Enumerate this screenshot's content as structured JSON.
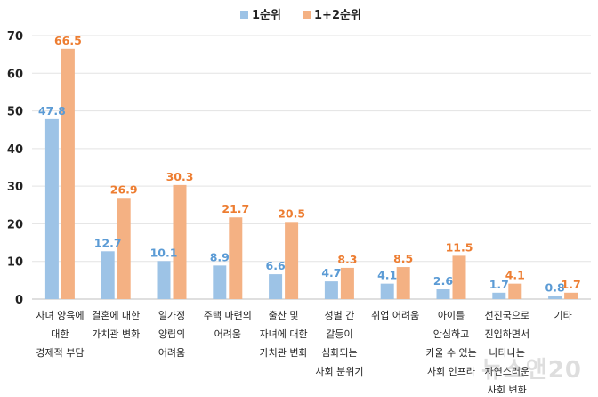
{
  "chart_data": {
    "type": "bar",
    "title": "",
    "xlabel": "",
    "ylabel": "",
    "ylim": [
      0,
      70
    ],
    "yticks": [
      0,
      10,
      20,
      30,
      40,
      50,
      60,
      70
    ],
    "grid": true,
    "legend_position": "top-center",
    "categories": [
      [
        "자녀 양육에",
        "대한",
        "경제적 부담"
      ],
      [
        "결혼에 대한",
        "가치관 변화"
      ],
      [
        "일가정",
        "양립의",
        "어려움"
      ],
      [
        "주택 마련의",
        "어려움"
      ],
      [
        "출산 및",
        "자녀에 대한",
        "가치관 변화"
      ],
      [
        "성별 간",
        "갈등이",
        "심화되는",
        "사회 분위기"
      ],
      [
        "취업 어려움"
      ],
      [
        "아이를",
        "안심하고",
        "키울 수 있는",
        "사회 인프라"
      ],
      [
        "선진국으로",
        "진입하면서",
        "나타나는",
        "자연스러운",
        "사회 변화"
      ],
      [
        "기타"
      ]
    ],
    "series": [
      {
        "name": "1순위",
        "color": "#9DC3E6",
        "label_color": "#5B9BD5",
        "values": [
          47.8,
          12.7,
          10.1,
          8.9,
          6.6,
          4.7,
          4.1,
          2.6,
          1.7,
          0.8
        ]
      },
      {
        "name": "1+2순위",
        "color": "#F4B183",
        "label_color": "#ED7D31",
        "values": [
          66.5,
          26.9,
          30.3,
          21.7,
          20.5,
          8.3,
          8.5,
          11.5,
          4.1,
          1.7
        ]
      }
    ]
  },
  "watermark": "뉴스앤20"
}
